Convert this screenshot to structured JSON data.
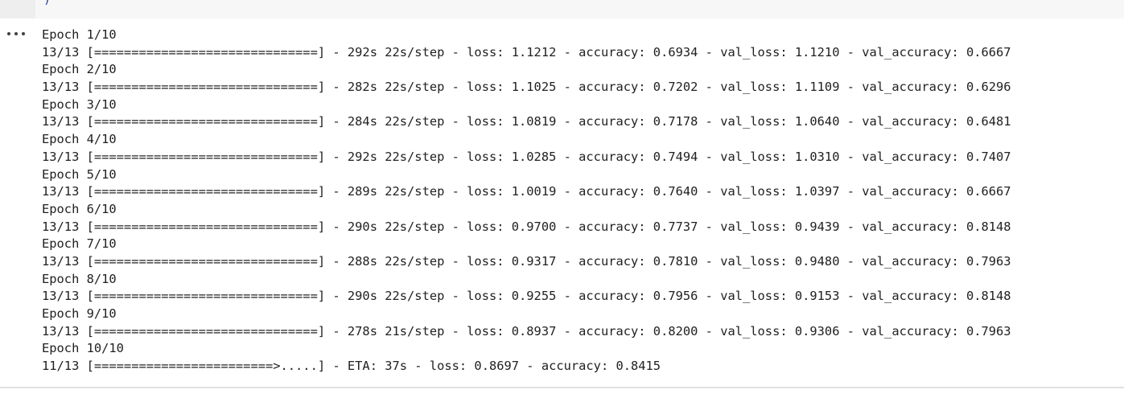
{
  "code_cell": {
    "last_line": ")"
  },
  "output": {
    "menu_icon": "more-horizontal-icon",
    "lines": [
      "Epoch 1/10",
      "13/13 [==============================] - 292s 22s/step - loss: 1.1212 - accuracy: 0.6934 - val_loss: 1.1210 - val_accuracy: 0.6667",
      "Epoch 2/10",
      "13/13 [==============================] - 282s 22s/step - loss: 1.1025 - accuracy: 0.7202 - val_loss: 1.1109 - val_accuracy: 0.6296",
      "Epoch 3/10",
      "13/13 [==============================] - 284s 22s/step - loss: 1.0819 - accuracy: 0.7178 - val_loss: 1.0640 - val_accuracy: 0.6481",
      "Epoch 4/10",
      "13/13 [==============================] - 292s 22s/step - loss: 1.0285 - accuracy: 0.7494 - val_loss: 1.0310 - val_accuracy: 0.7407",
      "Epoch 5/10",
      "13/13 [==============================] - 289s 22s/step - loss: 1.0019 - accuracy: 0.7640 - val_loss: 1.0397 - val_accuracy: 0.6667",
      "Epoch 6/10",
      "13/13 [==============================] - 290s 22s/step - loss: 0.9700 - accuracy: 0.7737 - val_loss: 0.9439 - val_accuracy: 0.8148",
      "Epoch 7/10",
      "13/13 [==============================] - 288s 22s/step - loss: 0.9317 - accuracy: 0.7810 - val_loss: 0.9480 - val_accuracy: 0.7963",
      "Epoch 8/10",
      "13/13 [==============================] - 290s 22s/step - loss: 0.9255 - accuracy: 0.7956 - val_loss: 0.9153 - val_accuracy: 0.8148",
      "Epoch 9/10",
      "13/13 [==============================] - 278s 21s/step - loss: 0.8937 - accuracy: 0.8200 - val_loss: 0.9306 - val_accuracy: 0.7963",
      "Epoch 10/10",
      "11/13 [========================>.....] - ETA: 37s - loss: 0.8697 - accuracy: 0.8415"
    ]
  }
}
